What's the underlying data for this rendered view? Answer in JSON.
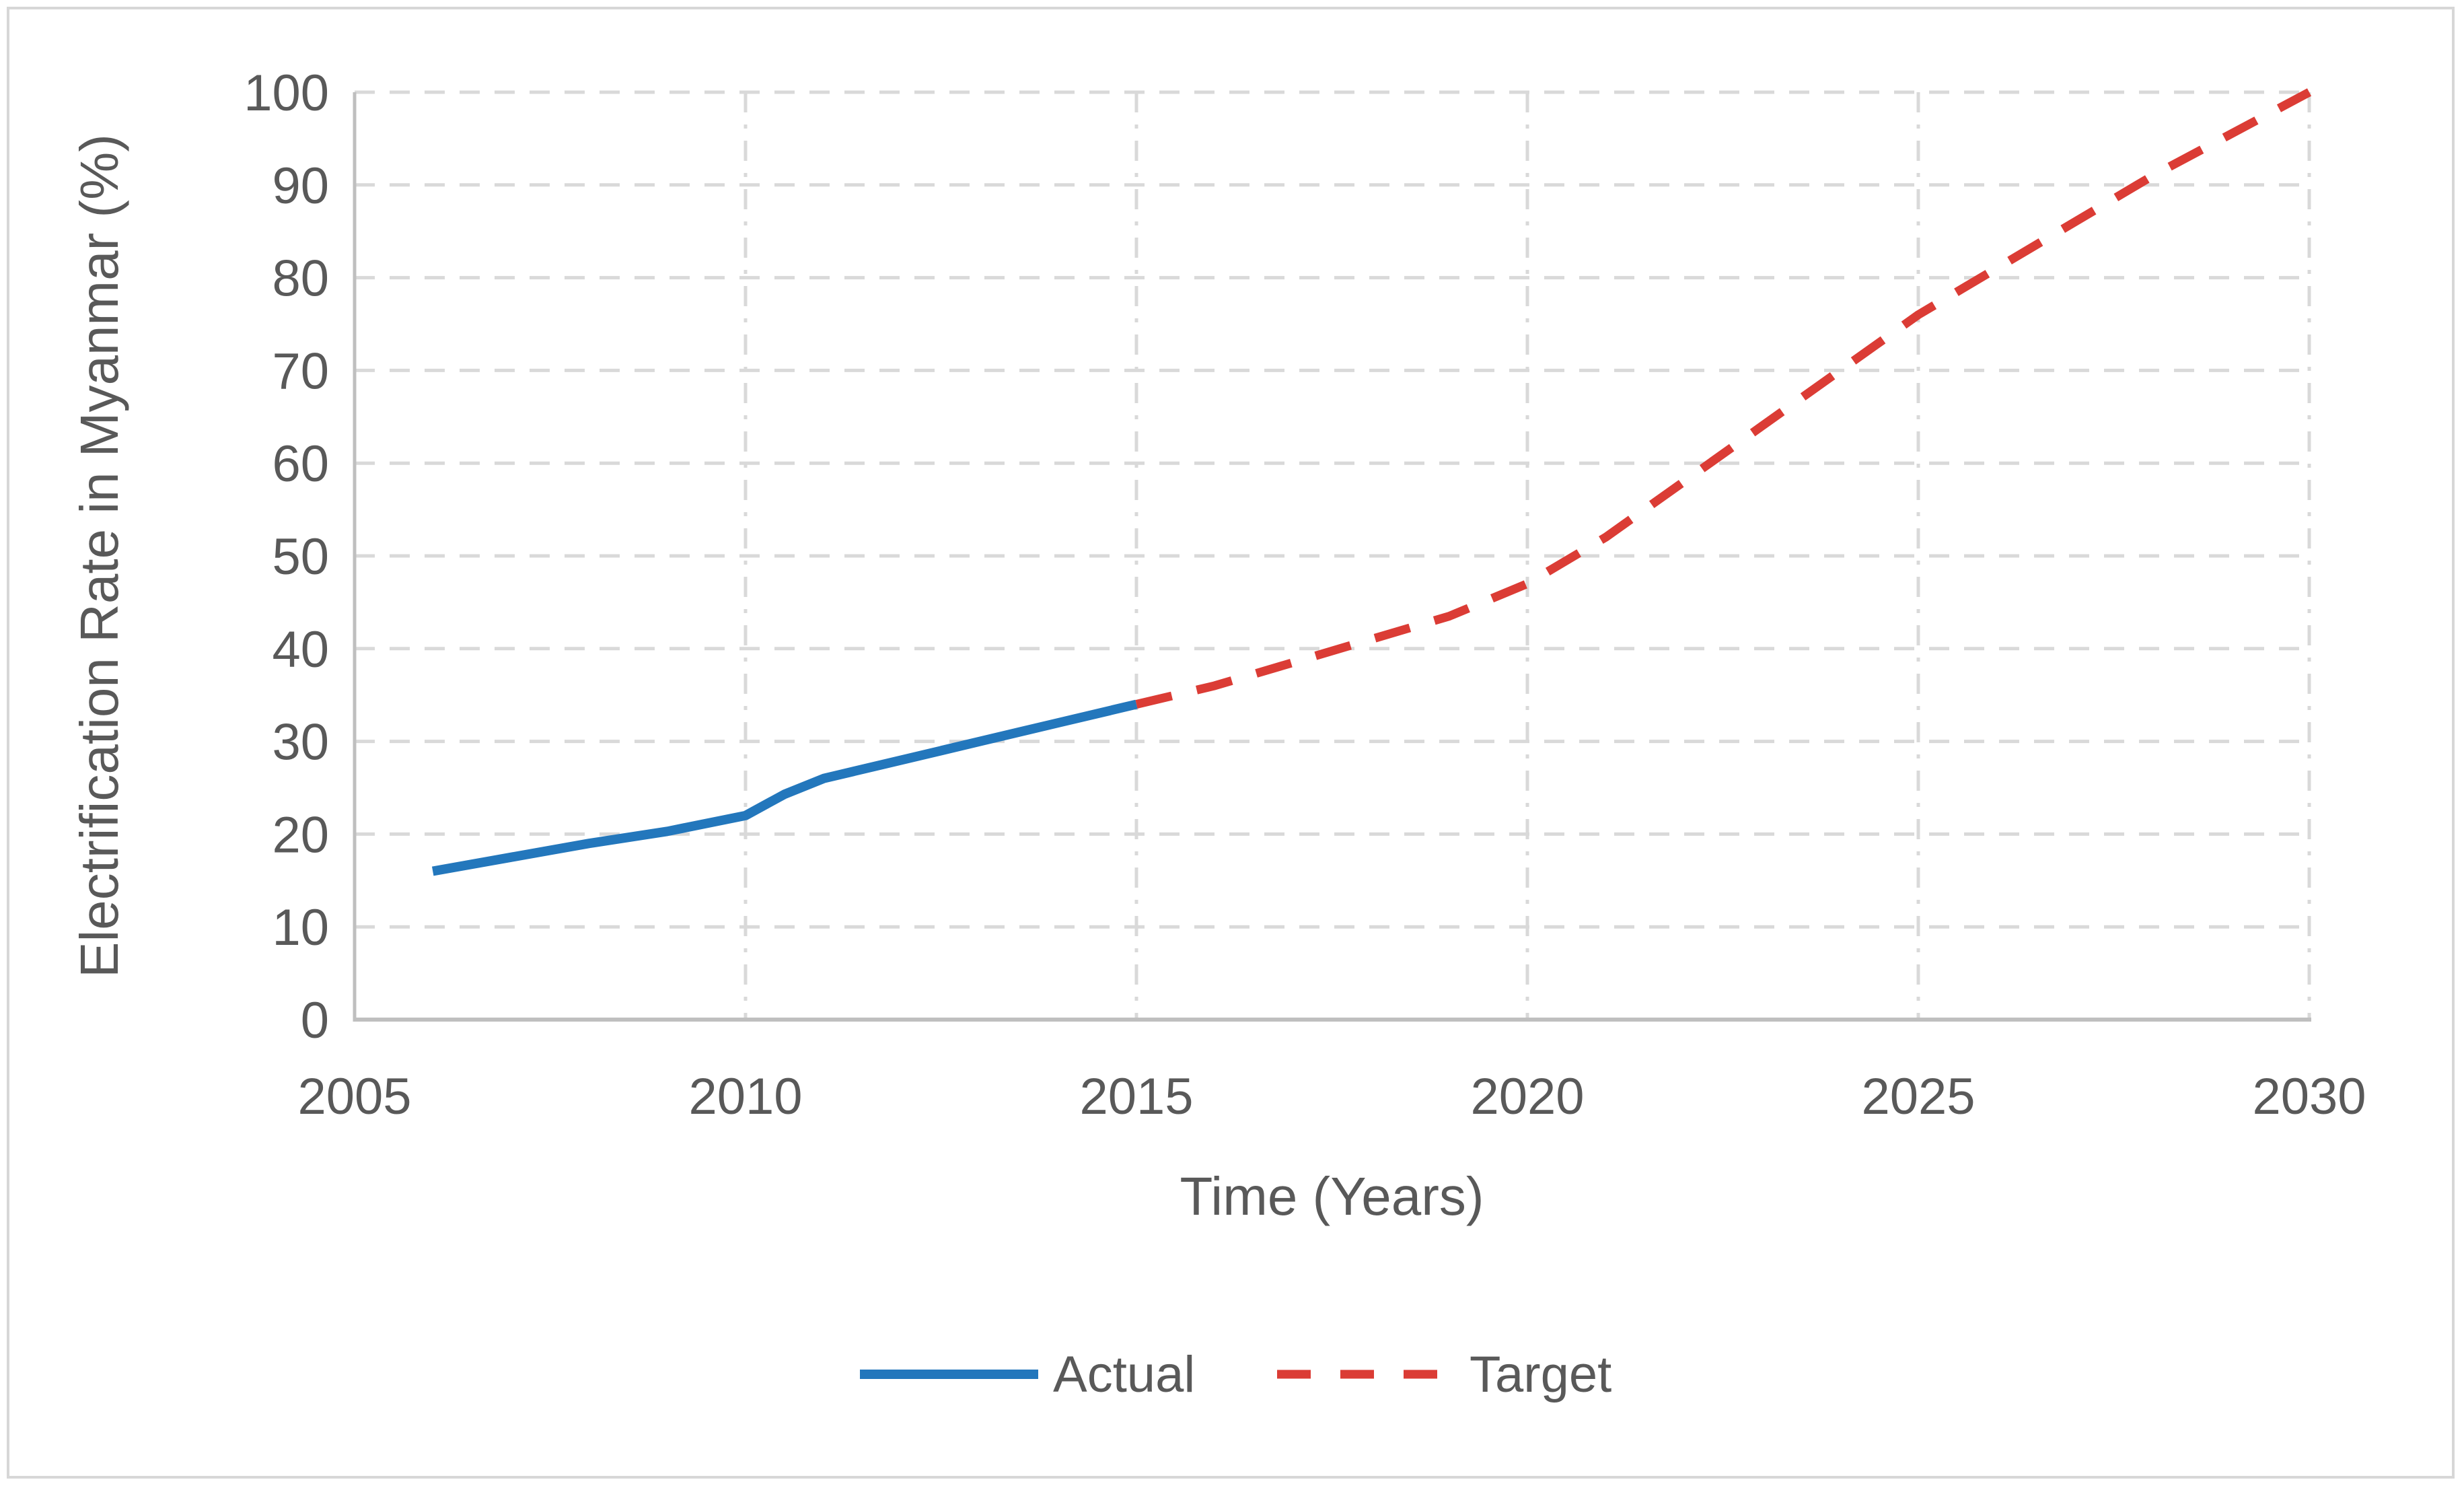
{
  "page": {
    "background": "#ffffff",
    "frame_border_color": "#d7d7d7"
  },
  "chart_data": {
    "type": "line",
    "title": "",
    "xlabel": "Time (Years)",
    "ylabel": "Electrification Rate in Myanmar (%)",
    "xlim": [
      2005,
      2030
    ],
    "ylim": [
      0,
      100
    ],
    "x_ticks": [
      "2005",
      "2010",
      "2015",
      "2020",
      "2025",
      "2030"
    ],
    "y_ticks": [
      "0",
      "10",
      "20",
      "30",
      "40",
      "50",
      "60",
      "70",
      "80",
      "90",
      "100"
    ],
    "grid": {
      "horizontal_style": "dashed",
      "vertical_style": "dash-dot",
      "color": "#d9d9d9",
      "show": true
    },
    "axis_color": "#bfbfbf",
    "text_color": "#595959",
    "legend": {
      "position": "bottom",
      "entries": [
        "Actual",
        "Target"
      ]
    },
    "series": [
      {
        "name": "Actual",
        "color": "#2377bc",
        "line_style": "solid",
        "points": [
          [
            2006,
            16
          ],
          [
            2007,
            17.5
          ],
          [
            2008,
            19
          ],
          [
            2009,
            20.3
          ],
          [
            2010,
            22
          ],
          [
            2010.5,
            24.3
          ],
          [
            2011,
            26
          ],
          [
            2012,
            28
          ],
          [
            2013,
            30
          ],
          [
            2014,
            32
          ],
          [
            2015,
            34
          ]
        ]
      },
      {
        "name": "Target",
        "color": "#db3c35",
        "line_style": "dashed",
        "points": [
          [
            2015,
            34
          ],
          [
            2016,
            36
          ],
          [
            2017,
            38.5
          ],
          [
            2018,
            41
          ],
          [
            2019,
            43.5
          ],
          [
            2020,
            47
          ],
          [
            2021,
            52
          ],
          [
            2022,
            58
          ],
          [
            2023,
            64
          ],
          [
            2024,
            70
          ],
          [
            2025,
            76
          ],
          [
            2026,
            81
          ],
          [
            2027,
            86
          ],
          [
            2028,
            91
          ],
          [
            2029,
            95.5
          ],
          [
            2030,
            100
          ]
        ]
      }
    ]
  }
}
